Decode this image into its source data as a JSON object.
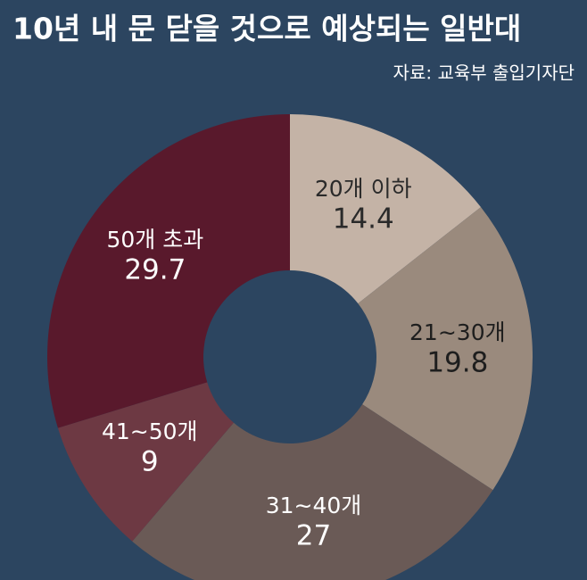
{
  "chart_data": {
    "type": "donut",
    "title": "10년 내 문 닫을 것으로 예상되는 일반대",
    "source": "자료: 교육부 출입기자단",
    "categories": [
      "20개 이하",
      "21∼30개",
      "31∼40개",
      "41∼50개",
      "50개 초과"
    ],
    "values": [
      14.4,
      19.8,
      27,
      9,
      29.7
    ],
    "colors": [
      "#c4b3a6",
      "#9a8a7d",
      "#6a5a56",
      "#6d3943",
      "#59192c"
    ],
    "label_colors": [
      "#2a2a2a",
      "#1e1e1e",
      "#ffffff",
      "#ffffff",
      "#ffffff"
    ]
  }
}
